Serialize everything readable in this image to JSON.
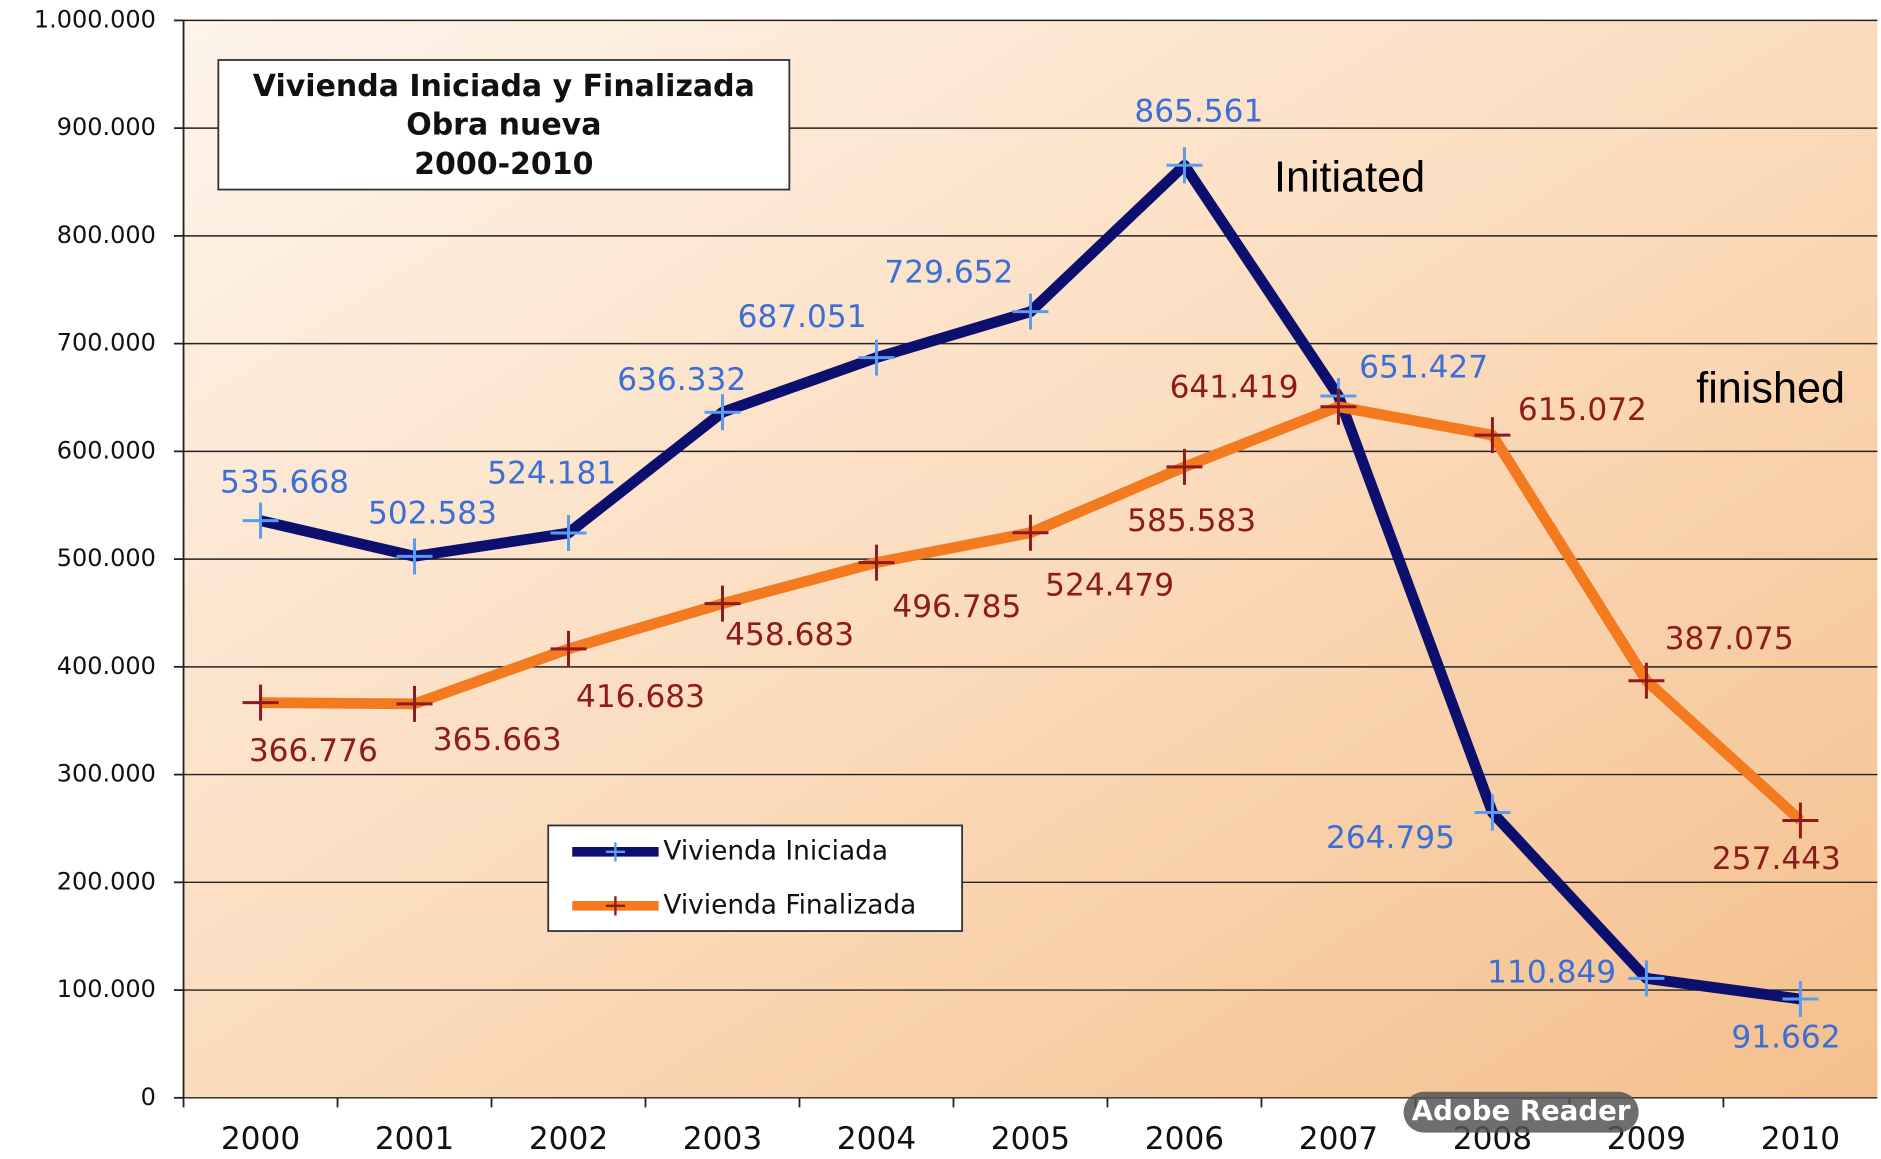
{
  "chart_data": {
    "type": "line",
    "title": "Vivienda Iniciada y Finalizada",
    "subtitle": "Obra nueva",
    "period": "2000-2010",
    "categories": [
      "2000",
      "2001",
      "2002",
      "2003",
      "2004",
      "2005",
      "2006",
      "2007",
      "2008",
      "2009",
      "2010"
    ],
    "series": [
      {
        "name": "Vivienda Iniciada",
        "color": "#0c0f6d",
        "label_color": "#3b6fd6",
        "marker_color": "#5a9cf0",
        "values": [
          535668,
          502583,
          524181,
          636332,
          687051,
          729652,
          865561,
          651427,
          264795,
          110849,
          91662
        ],
        "value_labels": [
          "535.668",
          "502.583",
          "524.181",
          "636.332",
          "687.051",
          "729.652",
          "865.561",
          "651.427",
          "264.795",
          "110.849",
          "91.662"
        ]
      },
      {
        "name": "Vivienda Finalizada",
        "color": "#f47a1f",
        "label_color": "#8e1b1b",
        "marker_color": "#8e1b1b",
        "values": [
          366776,
          365663,
          416683,
          458683,
          496785,
          524479,
          585583,
          641419,
          615072,
          387075,
          257443
        ],
        "value_labels": [
          "366.776",
          "365.663",
          "416.683",
          "458.683",
          "496.785",
          "524.479",
          "585.583",
          "641.419",
          "615.072",
          "387.075",
          "257.443"
        ]
      }
    ],
    "ylim": [
      0,
      1000000
    ],
    "yticks": [
      0,
      {
        "value": 100000,
        "label": "100.000"
      },
      {
        "value": 200000,
        "label": "200.000"
      },
      {
        "value": 300000,
        "label": "300.000"
      },
      {
        "value": 400000,
        "label": "400.000"
      },
      {
        "value": 500000,
        "label": "500.000"
      },
      {
        "value": 600000,
        "label": "600.000"
      },
      {
        "value": 700000,
        "label": "700.000"
      },
      {
        "value": 800000,
        "label": "800.000"
      },
      {
        "value": 900000,
        "label": "900.000"
      },
      {
        "value": 1000000,
        "label": "1.000.000"
      }
    ],
    "grid": true,
    "legend": "lower-left",
    "annotations": [
      "Initiated",
      "finished"
    ],
    "watermark": "Adobe Reader"
  }
}
